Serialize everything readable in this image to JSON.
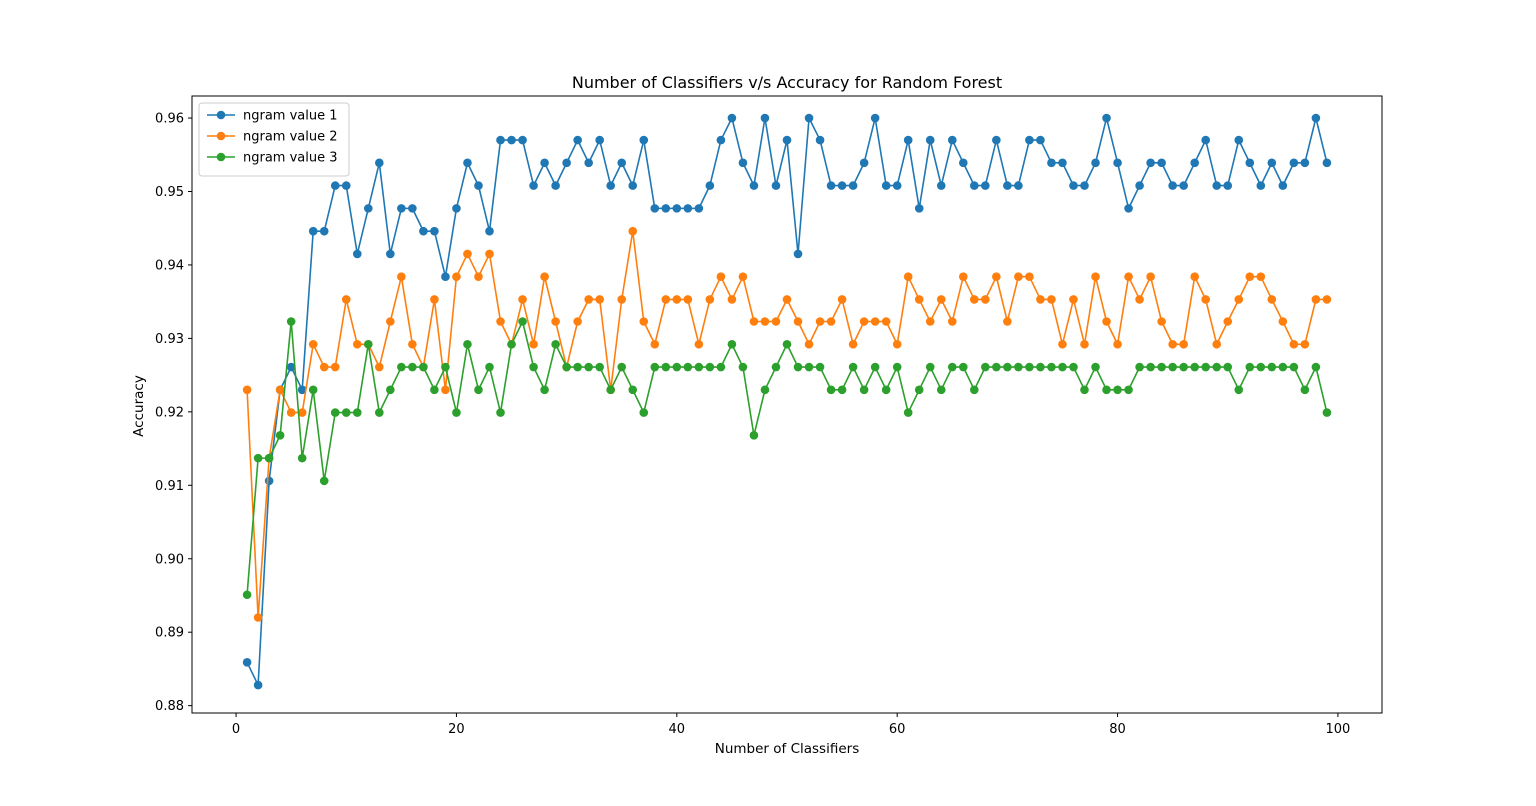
{
  "chart_data": {
    "type": "line",
    "title": "Number of Classifiers v/s Accuracy for Random Forest",
    "xlabel": "Number of Classifiers",
    "ylabel": "Accuracy",
    "xlim": [
      -4,
      104
    ],
    "ylim": [
      0.879,
      0.963
    ],
    "xticks": [
      0,
      20,
      40,
      60,
      80,
      100
    ],
    "xtick_labels": [
      "0",
      "20",
      "40",
      "60",
      "80",
      "100"
    ],
    "yticks": [
      0.88,
      0.89,
      0.9,
      0.91,
      0.92,
      0.93,
      0.94,
      0.95,
      0.96
    ],
    "ytick_labels": [
      "0.88",
      "0.89",
      "0.90",
      "0.91",
      "0.92",
      "0.93",
      "0.94",
      "0.95",
      "0.96"
    ],
    "grid": false,
    "legend_position": "top-left",
    "x_start": 1,
    "series": [
      {
        "name": "ngram value 1",
        "color": "#1f77b4",
        "marker": "circle",
        "values": [
          0.8859,
          0.8828,
          0.9106,
          0.923,
          0.9261,
          0.923,
          0.9446,
          0.9446,
          0.9508,
          0.9508,
          0.9415,
          0.9477,
          0.9539,
          0.9415,
          0.9477,
          0.9477,
          0.9446,
          0.9446,
          0.9384,
          0.9477,
          0.9539,
          0.9508,
          0.9446,
          0.957,
          0.957,
          0.957,
          0.9508,
          0.9539,
          0.9508,
          0.9539,
          0.957,
          0.9539,
          0.957,
          0.9508,
          0.9539,
          0.9508,
          0.957,
          0.9477,
          0.9477,
          0.9477,
          0.9477,
          0.9477,
          0.9508,
          0.957,
          0.96,
          0.9539,
          0.9508,
          0.96,
          0.9508,
          0.957,
          0.9415,
          0.96,
          0.957,
          0.9508,
          0.9508,
          0.9508,
          0.9539,
          0.96,
          0.9508,
          0.9508,
          0.957,
          0.9477,
          0.957,
          0.9508,
          0.957,
          0.9539,
          0.9508,
          0.9508,
          0.957,
          0.9508,
          0.9508,
          0.957,
          0.957,
          0.9539,
          0.9539,
          0.9508,
          0.9508,
          0.9539,
          0.96,
          0.9539,
          0.9477,
          0.9508,
          0.9539,
          0.9539,
          0.9508,
          0.9508,
          0.9539,
          0.957,
          0.9508,
          0.9508,
          0.957,
          0.9539,
          0.9508,
          0.9539,
          0.9508,
          0.9539,
          0.9539,
          0.96,
          0.9539
        ]
      },
      {
        "name": "ngram value 2",
        "color": "#ff7f0e",
        "marker": "circle",
        "values": [
          0.923,
          0.892,
          0.9137,
          0.923,
          0.9199,
          0.9199,
          0.9292,
          0.9261,
          0.9261,
          0.9353,
          0.9292,
          0.9292,
          0.9261,
          0.9323,
          0.9384,
          0.9292,
          0.9261,
          0.9353,
          0.923,
          0.9384,
          0.9415,
          0.9384,
          0.9415,
          0.9323,
          0.9292,
          0.9353,
          0.9292,
          0.9384,
          0.9323,
          0.9261,
          0.9323,
          0.9353,
          0.9353,
          0.923,
          0.9353,
          0.9446,
          0.9323,
          0.9292,
          0.9353,
          0.9353,
          0.9353,
          0.9292,
          0.9353,
          0.9384,
          0.9353,
          0.9384,
          0.9323,
          0.9323,
          0.9323,
          0.9353,
          0.9323,
          0.9292,
          0.9323,
          0.9323,
          0.9353,
          0.9292,
          0.9323,
          0.9323,
          0.9323,
          0.9292,
          0.9384,
          0.9353,
          0.9323,
          0.9353,
          0.9323,
          0.9384,
          0.9353,
          0.9353,
          0.9384,
          0.9323,
          0.9384,
          0.9384,
          0.9353,
          0.9353,
          0.9292,
          0.9353,
          0.9292,
          0.9384,
          0.9323,
          0.9292,
          0.9384,
          0.9353,
          0.9384,
          0.9323,
          0.9292,
          0.9292,
          0.9384,
          0.9353,
          0.9292,
          0.9323,
          0.9353,
          0.9384,
          0.9384,
          0.9353,
          0.9323,
          0.9292,
          0.9292,
          0.9353,
          0.9353
        ]
      },
      {
        "name": "ngram value 3",
        "color": "#2ca02c",
        "marker": "circle",
        "values": [
          0.8951,
          0.9137,
          0.9137,
          0.9168,
          0.9323,
          0.9137,
          0.923,
          0.9106,
          0.9199,
          0.9199,
          0.9199,
          0.9292,
          0.9199,
          0.923,
          0.9261,
          0.9261,
          0.9261,
          0.923,
          0.9261,
          0.9199,
          0.9292,
          0.923,
          0.9261,
          0.9199,
          0.9292,
          0.9323,
          0.9261,
          0.923,
          0.9292,
          0.9261,
          0.9261,
          0.9261,
          0.9261,
          0.923,
          0.9261,
          0.923,
          0.9199,
          0.9261,
          0.9261,
          0.9261,
          0.9261,
          0.9261,
          0.9261,
          0.9261,
          0.9292,
          0.9261,
          0.9168,
          0.923,
          0.9261,
          0.9292,
          0.9261,
          0.9261,
          0.9261,
          0.923,
          0.923,
          0.9261,
          0.923,
          0.9261,
          0.923,
          0.9261,
          0.9199,
          0.923,
          0.9261,
          0.923,
          0.9261,
          0.9261,
          0.923,
          0.9261,
          0.9261,
          0.9261,
          0.9261,
          0.9261,
          0.9261,
          0.9261,
          0.9261,
          0.9261,
          0.923,
          0.9261,
          0.923,
          0.923,
          0.923,
          0.9261,
          0.9261,
          0.9261,
          0.9261,
          0.9261,
          0.9261,
          0.9261,
          0.9261,
          0.9261,
          0.923,
          0.9261,
          0.9261,
          0.9261,
          0.9261,
          0.9261,
          0.923,
          0.9261,
          0.9199
        ]
      }
    ]
  }
}
